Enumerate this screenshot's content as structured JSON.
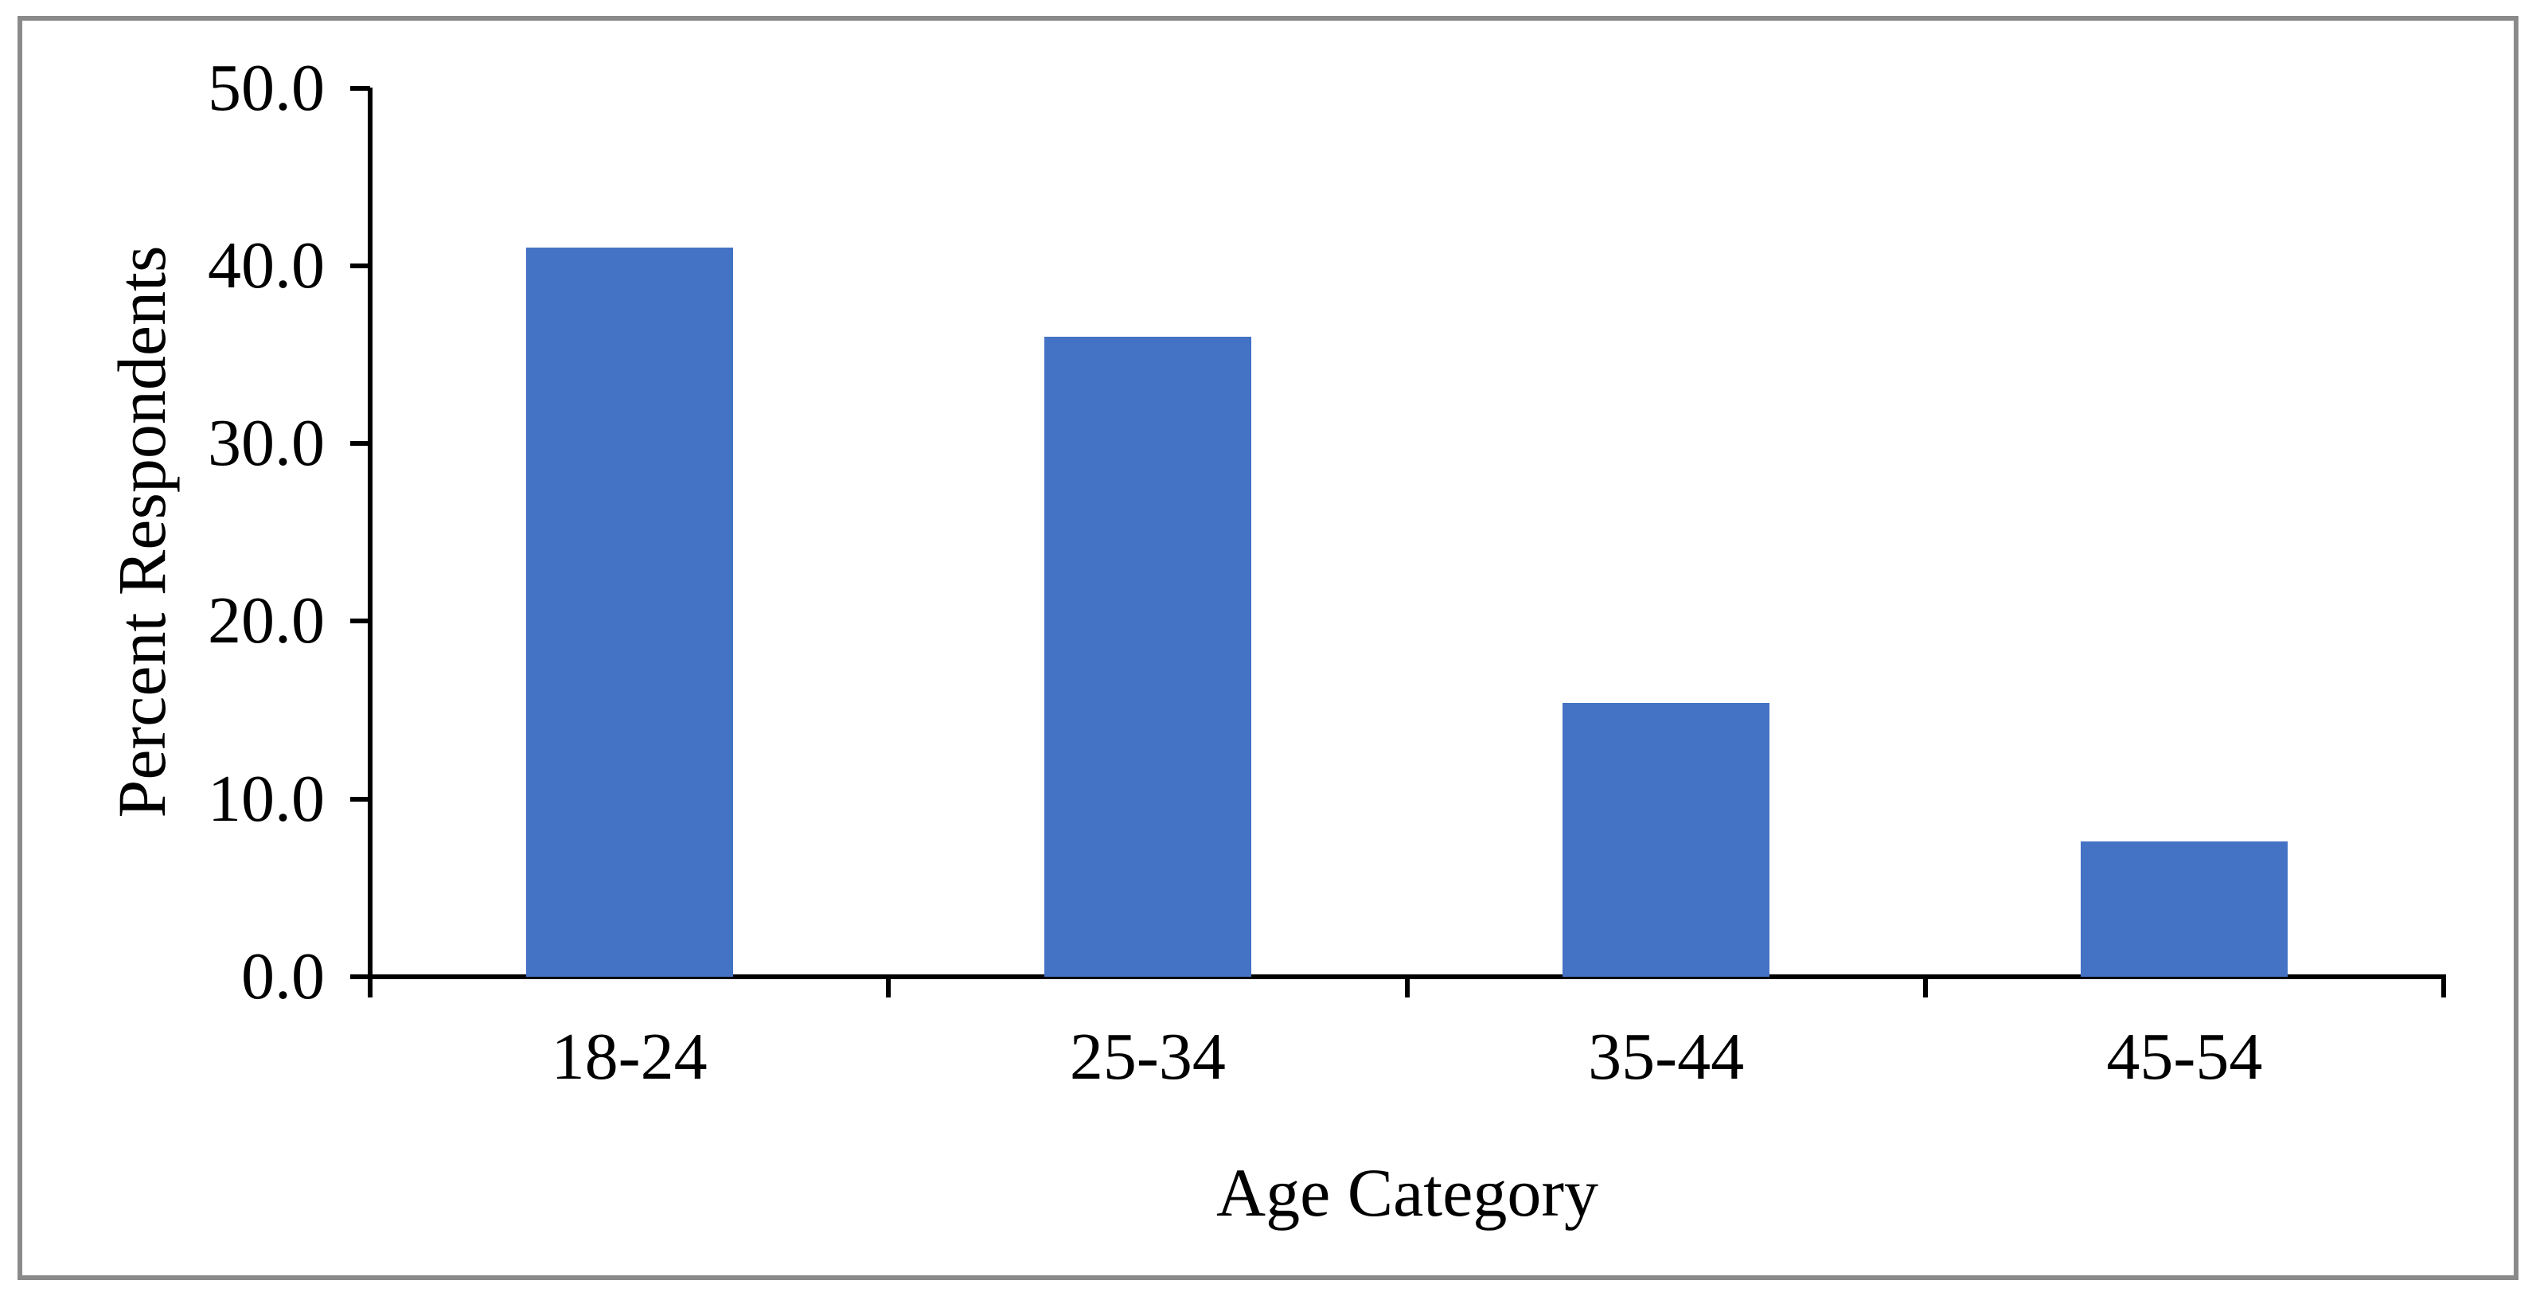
{
  "chart_data": {
    "type": "bar",
    "title": "",
    "categories": [
      "18-24",
      "25-34",
      "35-44",
      "45-54"
    ],
    "values": [
      41.0,
      36.0,
      15.4,
      7.6
    ],
    "series": [
      {
        "name": "Percent Respondents",
        "values": [
          41.0,
          36.0,
          15.4,
          7.6
        ]
      }
    ],
    "xlabel": "Age Category",
    "ylabel": "Percent Respondents",
    "ylim": [
      0.0,
      50.0
    ],
    "y_ticks": [
      0,
      10,
      20,
      30,
      40,
      50
    ],
    "y_tick_labels": [
      "0.0",
      "10.0",
      "20.0",
      "30.0",
      "40.0",
      "50.0"
    ],
    "grid": false,
    "legend": false,
    "bar_gap_ratio": 0.4,
    "colors": {
      "bar_fill": "#4472C4",
      "axis": "#000000",
      "text": "#000000",
      "frame_border": "#8a8a8a",
      "background": "#ffffff"
    }
  }
}
